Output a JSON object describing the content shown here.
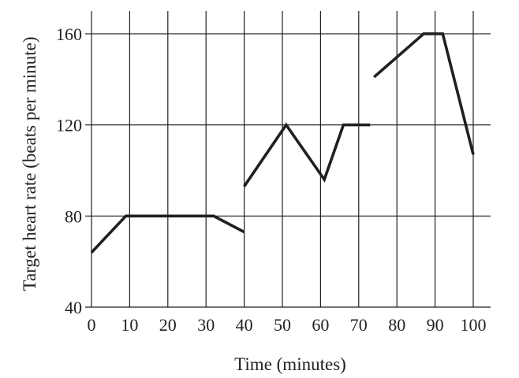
{
  "chart_data": {
    "type": "line",
    "title": "",
    "xlabel": "Time (minutes)",
    "ylabel": "Target heart rate (beats per minute)",
    "xlim": [
      0,
      100
    ],
    "ylim": [
      40,
      170
    ],
    "x_ticks": [
      0,
      10,
      20,
      30,
      40,
      50,
      60,
      70,
      80,
      90,
      100
    ],
    "x_tick_labels": [
      "0",
      "10",
      "20",
      "30",
      "40",
      "50",
      "60",
      "70",
      "80",
      "90",
      "100"
    ],
    "y_ticks": [
      40,
      80,
      120,
      160
    ],
    "y_tick_labels": [
      "40",
      "80",
      "120",
      "160"
    ],
    "grid": true,
    "line_color": "#231f20",
    "segments": [
      {
        "x": [
          0,
          9,
          32,
          40
        ],
        "y": [
          64,
          80,
          80,
          73
        ]
      },
      {
        "x": [
          40,
          51,
          61,
          66,
          73
        ],
        "y": [
          93,
          120,
          96,
          120,
          120
        ]
      },
      {
        "x": [
          74,
          87,
          92,
          100
        ],
        "y": [
          141,
          160,
          160,
          107
        ]
      }
    ]
  }
}
